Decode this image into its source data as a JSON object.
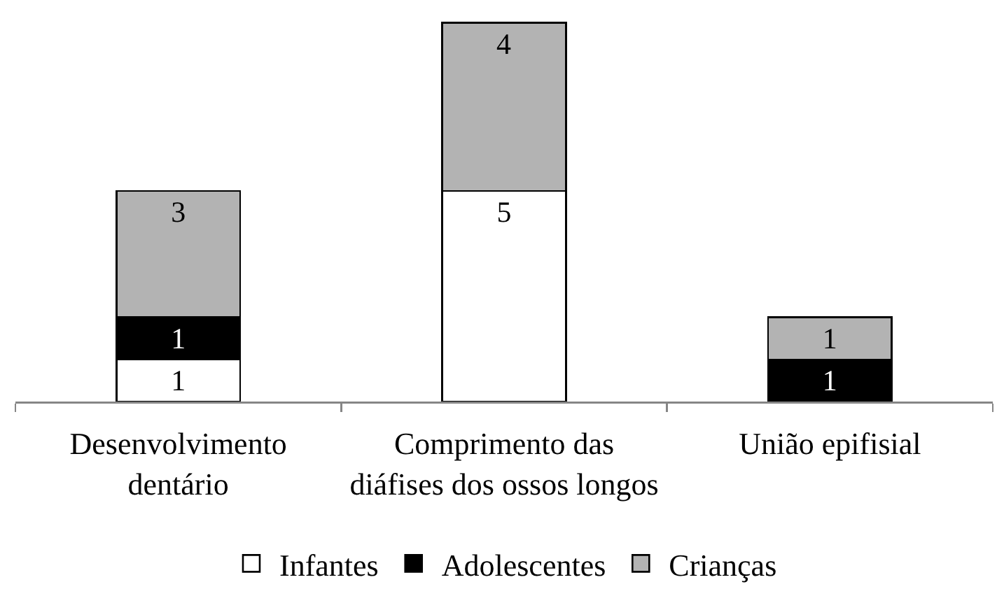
{
  "chart_data": {
    "type": "bar",
    "categories": [
      "Desenvolvimento dentário",
      "Comprimento das diáfises dos ossos longos",
      "União epifisial"
    ],
    "series": [
      {
        "name": "Infantes",
        "color": "#ffffff",
        "values": [
          1,
          5,
          null
        ]
      },
      {
        "name": "Adolescentes",
        "color": "#000000",
        "values": [
          1,
          null,
          1
        ]
      },
      {
        "name": "Crianças",
        "color": "#b3b3b3",
        "values": [
          3,
          4,
          1
        ]
      }
    ],
    "stacked": true,
    "data_labels": true,
    "legend": "bottom",
    "tick_labels": "x"
  }
}
